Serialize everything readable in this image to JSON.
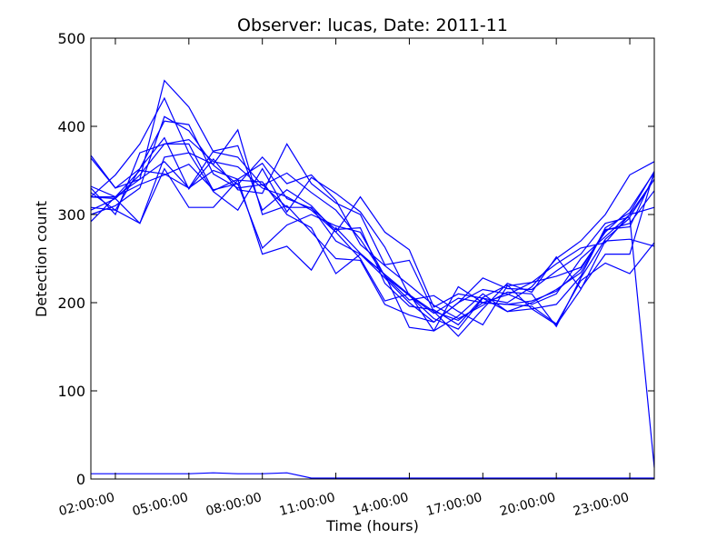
{
  "chart_data": {
    "type": "line",
    "title": "Observer: lucas, Date: 2011-11",
    "xlabel": "Time (hours)",
    "ylabel": "Detection count",
    "x_tick_labels": [
      "02:00:00",
      "05:00:00",
      "08:00:00",
      "11:00:00",
      "14:00:00",
      "17:00:00",
      "20:00:00",
      "23:00:00"
    ],
    "x_tick_hours": [
      2,
      5,
      8,
      11,
      14,
      17,
      20,
      23
    ],
    "xlim": [
      1,
      24
    ],
    "x_hours": [
      1,
      2,
      3,
      4,
      5,
      6,
      7,
      8,
      9,
      10,
      11,
      12,
      13,
      14,
      15,
      16,
      17,
      18,
      19,
      20,
      21,
      22,
      23,
      24
    ],
    "ylim": [
      0,
      500
    ],
    "y_ticks": [
      0,
      100,
      200,
      300,
      400,
      500
    ],
    "grid": false,
    "line_color": "#0000ff",
    "series": [
      {
        "values": [
          367,
          330,
          340,
          452,
          422,
          371,
          365,
          333,
          347,
          325,
          305,
          272,
          230,
          208,
          182,
          170,
          205,
          200,
          218,
          250,
          270,
          300,
          345,
          360
        ]
      },
      {
        "values": [
          320,
          345,
          380,
          432,
          370,
          357,
          396,
          300,
          310,
          280,
          250,
          248,
          198,
          186,
          178,
          200,
          228,
          216,
          215,
          236,
          255,
          290,
          297,
          340
        ]
      },
      {
        "values": [
          292,
          320,
          350,
          346,
          330,
          372,
          378,
          305,
          328,
          310,
          280,
          250,
          202,
          210,
          168,
          185,
          210,
          190,
          200,
          215,
          234,
          283,
          286,
          345
        ]
      },
      {
        "values": [
          330,
          300,
          370,
          380,
          385,
          360,
          354,
          330,
          320,
          305,
          280,
          320,
          280,
          260,
          195,
          210,
          205,
          190,
          193,
          198,
          230,
          285,
          302,
          349
        ]
      },
      {
        "values": [
          308,
          305,
          352,
          406,
          402,
          346,
          330,
          334,
          308,
          308,
          270,
          255,
          228,
          200,
          178,
          200,
          215,
          210,
          198,
          210,
          250,
          275,
          300,
          308
        ]
      },
      {
        "values": [
          332,
          320,
          334,
          345,
          357,
          328,
          335,
          262,
          288,
          300,
          287,
          280,
          230,
          203,
          208,
          190,
          175,
          219,
          223,
          244,
          262,
          268,
          300,
          340
        ]
      },
      {
        "values": [
          364,
          330,
          352,
          387,
          329,
          363,
          328,
          324,
          380,
          335,
          313,
          300,
          243,
          248,
          190,
          162,
          193,
          222,
          212,
          252,
          216,
          255,
          255,
          349
        ]
      },
      {
        "values": [
          320,
          320,
          340,
          360,
          330,
          350,
          340,
          255,
          264,
          237,
          285,
          256,
          232,
          172,
          168,
          218,
          200,
          209,
          223,
          230,
          240,
          280,
          306,
          348
        ]
      },
      {
        "values": [
          320,
          318,
          290,
          352,
          308,
          308,
          339,
          337,
          300,
          285,
          233,
          255,
          232,
          209,
          190,
          180,
          200,
          198,
          202,
          213,
          238,
          282,
          290,
          327
        ]
      },
      {
        "values": [
          305,
          318,
          345,
          380,
          380,
          327,
          340,
          358,
          318,
          307,
          283,
          285,
          222,
          196,
          192,
          175,
          206,
          220,
          193,
          175,
          215,
          270,
          272,
          264
        ]
      },
      {
        "values": [
          325,
          305,
          290,
          365,
          370,
          326,
          305,
          352,
          303,
          342,
          324,
          303,
          263,
          208,
          188,
          205,
          200,
          198,
          196,
          176,
          225,
          245,
          233,
          268
        ]
      },
      {
        "values": [
          300,
          310,
          330,
          411,
          395,
          356,
          334,
          365,
          335,
          345,
          316,
          266,
          242,
          220,
          197,
          182,
          197,
          212,
          210,
          173,
          228,
          272,
          296,
          13
        ]
      },
      {
        "values": [
          6,
          6,
          6,
          6,
          6,
          7,
          6,
          6,
          7,
          1,
          1,
          1,
          1,
          1,
          1,
          1,
          1,
          1,
          1,
          1,
          1,
          1,
          1,
          1
        ]
      }
    ]
  }
}
